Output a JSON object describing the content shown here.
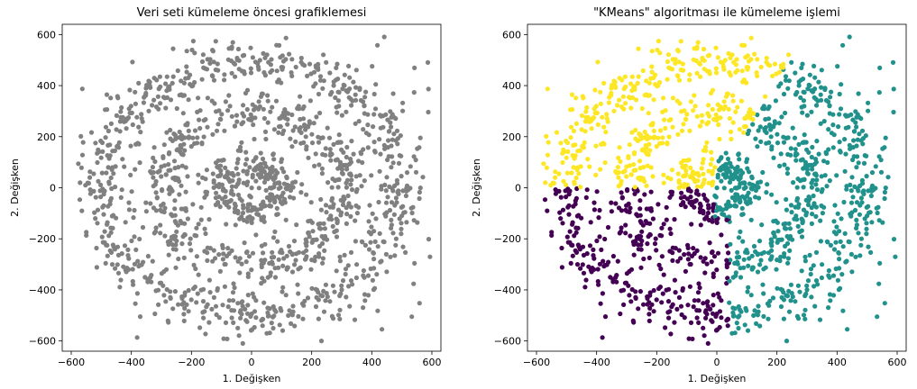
{
  "chart_data": [
    {
      "type": "scatter",
      "title": "Veri seti kümeleme öncesi grafiklemesi",
      "xlabel": "1. Değişken",
      "ylabel": "2. Değişken",
      "xlim": [
        -630,
        630
      ],
      "ylim": [
        -640,
        640
      ],
      "xticks": [
        -600,
        -400,
        -200,
        0,
        200,
        400,
        600
      ],
      "yticks": [
        -600,
        -400,
        -200,
        0,
        200,
        400,
        600
      ],
      "xtick_labels": [
        "−600",
        "−400",
        "−200",
        "0",
        "200",
        "400",
        "600"
      ],
      "ytick_labels": [
        "−600",
        "−400",
        "−200",
        "0",
        "200",
        "400",
        "600"
      ],
      "grid": false,
      "legend": "none",
      "point_color": "#808080",
      "data_structure": "three concentric noisy rings (radii ~500, ~300, ~100) plus uniform background noise, ~1500 points"
    },
    {
      "type": "scatter",
      "title": "\"KMeans\" algoritması ile kümeleme işlemi",
      "xlabel": "1. Değişken",
      "ylabel": "2. Değişken",
      "xlim": [
        -630,
        630
      ],
      "ylim": [
        -640,
        640
      ],
      "xticks": [
        -600,
        -400,
        -200,
        0,
        200,
        400,
        600
      ],
      "yticks": [
        -600,
        -400,
        -200,
        0,
        200,
        400,
        600
      ],
      "xtick_labels": [
        "−600",
        "−400",
        "−200",
        "0",
        "200",
        "400",
        "600"
      ],
      "ytick_labels": [
        "−600",
        "−400",
        "−200",
        "0",
        "200",
        "400",
        "600"
      ],
      "grid": false,
      "legend": "none",
      "cluster_colors": [
        "#fde725",
        "#21918c",
        "#440154"
      ],
      "clusters": [
        {
          "color": "#fde725",
          "region": "upper-left (y > 0, left of dividing line)"
        },
        {
          "color": "#21918c",
          "region": "right"
        },
        {
          "color": "#440154",
          "region": "lower-left (y < 0, x < ~40)"
        }
      ],
      "data_structure": "same points as left plot, colored by 3 KMeans clusters"
    }
  ]
}
